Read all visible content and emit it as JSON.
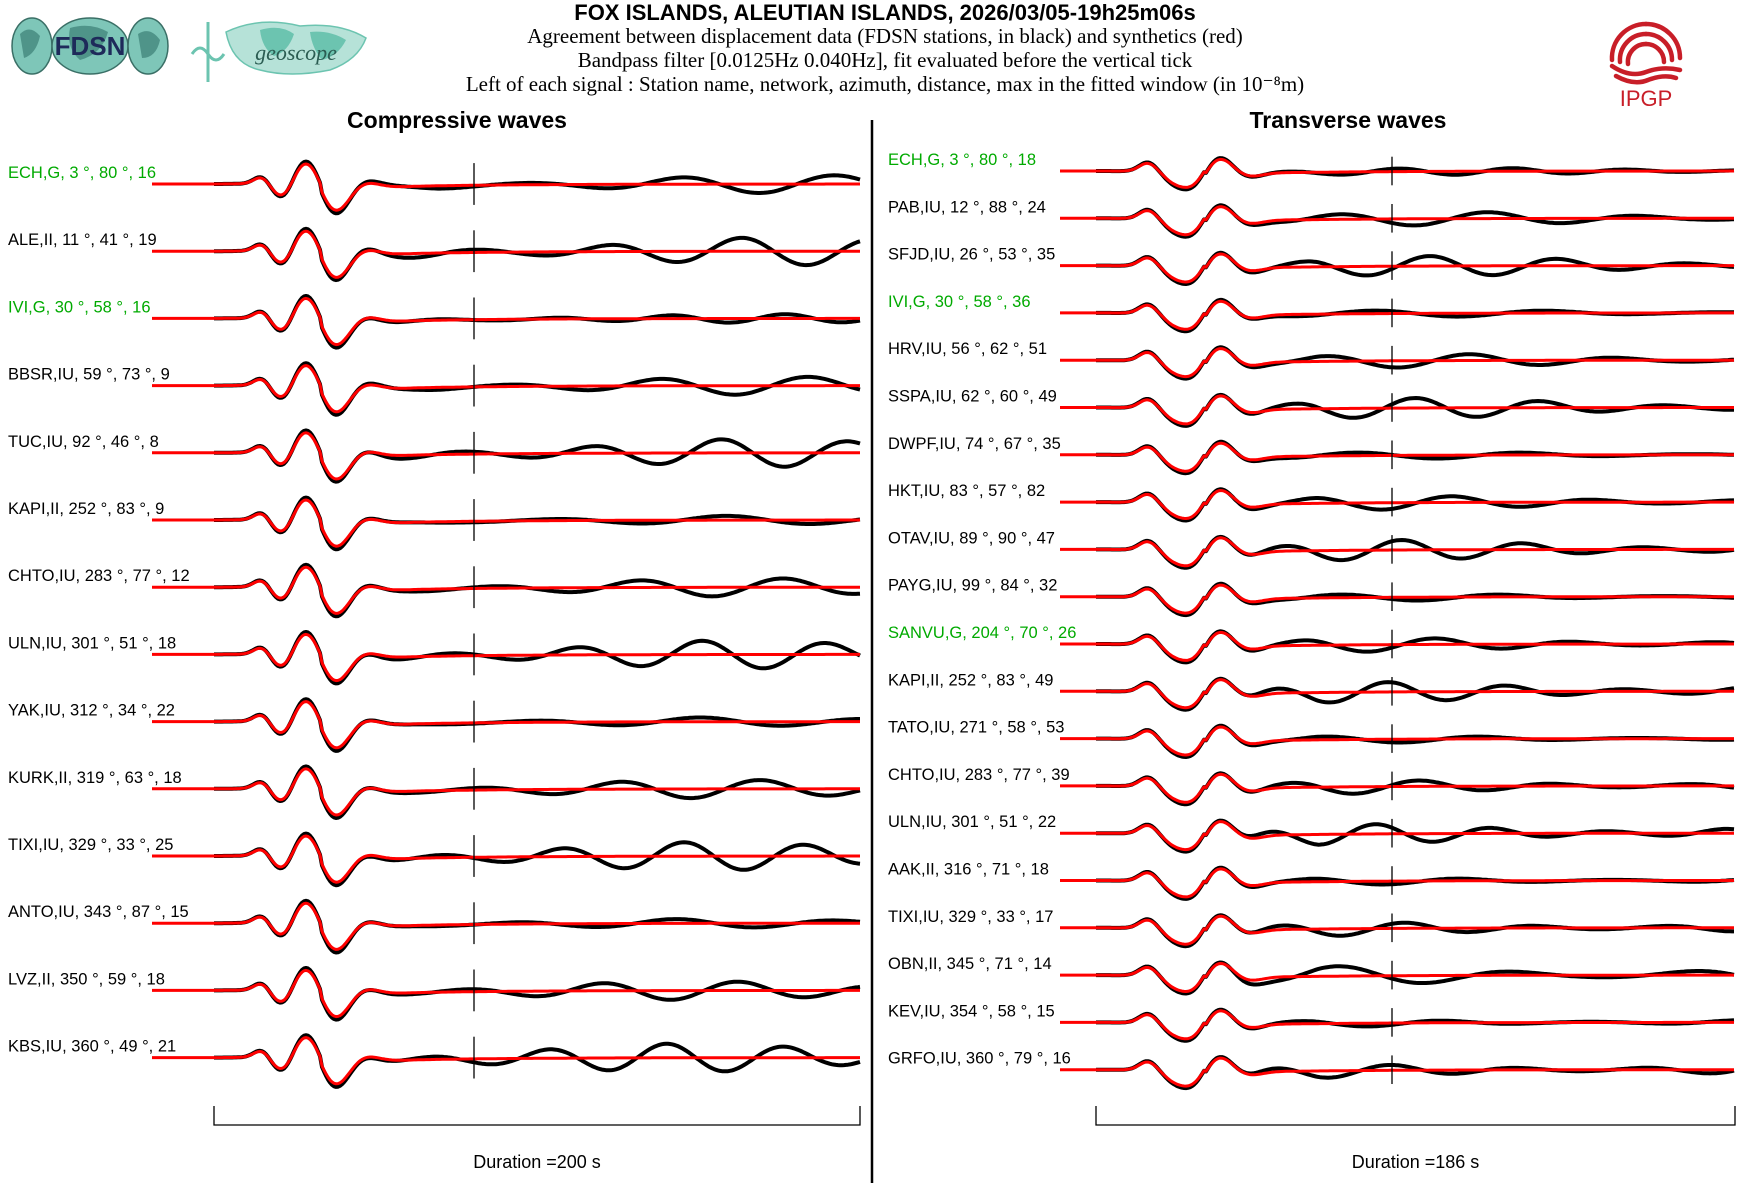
{
  "header": {
    "title": "FOX ISLANDS, ALEUTIAN ISLANDS, 2026/03/05-19h25m06s",
    "subtitle_1": "Agreement between displacement data (FDSN stations, in black) and synthetics (red)",
    "subtitle_2": "Bandpass filter [0.0125Hz 0.040Hz], fit evaluated before the vertical tick",
    "subtitle_3": "Left of each signal : Station name, network, azimuth, distance, max in the fitted window (in 10⁻⁸m)",
    "logo_fdsn_text": "FDSN",
    "logo_geoscope_text": "geoscope",
    "logo_ipgp_text": "IPGP"
  },
  "colors": {
    "data": "#000000",
    "synthetic": "#ff0000",
    "highlight_label": "#00aa00",
    "ipgp": "#c81e28",
    "fdsn_globe": "#7ec6b8",
    "geoscope": "#6cc4b0"
  },
  "chart_data": [
    {
      "type": "line",
      "title": "Compressive waves",
      "duration_label": "Duration =200 s",
      "duration_s": 200,
      "series_names": [
        "data (black)",
        "synthetics (red)"
      ],
      "stations": [
        {
          "label": "ECH,G, 3 °, 80 °, 16",
          "name": "ECH",
          "network": "G",
          "azimuth": 3,
          "distance": 80,
          "max": 16,
          "highlight": true
        },
        {
          "label": "ALE,II, 11 °, 41 °, 19",
          "name": "ALE",
          "network": "II",
          "azimuth": 11,
          "distance": 41,
          "max": 19,
          "highlight": false
        },
        {
          "label": "IVI,G, 30 °, 58 °, 16",
          "name": "IVI",
          "network": "G",
          "azimuth": 30,
          "distance": 58,
          "max": 16,
          "highlight": true
        },
        {
          "label": "BBSR,IU, 59 °, 73 °, 9",
          "name": "BBSR",
          "network": "IU",
          "azimuth": 59,
          "distance": 73,
          "max": 9,
          "highlight": false
        },
        {
          "label": "TUC,IU, 92 °, 46 °, 8",
          "name": "TUC",
          "network": "IU",
          "azimuth": 92,
          "distance": 46,
          "max": 8,
          "highlight": false
        },
        {
          "label": "KAPI,II, 252 °, 83 °, 9",
          "name": "KAPI",
          "network": "II",
          "azimuth": 252,
          "distance": 83,
          "max": 9,
          "highlight": false
        },
        {
          "label": "CHTO,IU, 283 °, 77 °, 12",
          "name": "CHTO",
          "network": "IU",
          "azimuth": 283,
          "distance": 77,
          "max": 12,
          "highlight": false
        },
        {
          "label": "ULN,IU, 301 °, 51 °, 18",
          "name": "ULN",
          "network": "IU",
          "azimuth": 301,
          "distance": 51,
          "max": 18,
          "highlight": false
        },
        {
          "label": "YAK,IU, 312 °, 34 °, 22",
          "name": "YAK",
          "network": "IU",
          "azimuth": 312,
          "distance": 34,
          "max": 22,
          "highlight": false
        },
        {
          "label": "KURK,II, 319 °, 63 °, 18",
          "name": "KURK",
          "network": "II",
          "azimuth": 319,
          "distance": 63,
          "max": 18,
          "highlight": false
        },
        {
          "label": "TIXI,IU, 329 °, 33 °, 25",
          "name": "TIXI",
          "network": "IU",
          "azimuth": 329,
          "distance": 33,
          "max": 25,
          "highlight": false
        },
        {
          "label": "ANTO,IU, 343 °, 87 °, 15",
          "name": "ANTO",
          "network": "IU",
          "azimuth": 343,
          "distance": 87,
          "max": 15,
          "highlight": false
        },
        {
          "label": "LVZ,II, 350 °, 59 °, 18",
          "name": "LVZ",
          "network": "II",
          "azimuth": 350,
          "distance": 59,
          "max": 18,
          "highlight": false
        },
        {
          "label": "KBS,IU, 360 °, 49 °, 21",
          "name": "KBS",
          "network": "IU",
          "azimuth": 360,
          "distance": 49,
          "max": 21,
          "highlight": false
        }
      ]
    },
    {
      "type": "line",
      "title": "Transverse waves",
      "duration_label": "Duration =186 s",
      "duration_s": 186,
      "series_names": [
        "data (black)",
        "synthetics (red)"
      ],
      "stations": [
        {
          "label": "ECH,G, 3 °, 80 °, 18",
          "name": "ECH",
          "network": "G",
          "azimuth": 3,
          "distance": 80,
          "max": 18,
          "highlight": true
        },
        {
          "label": "PAB,IU, 12 °, 88 °, 24",
          "name": "PAB",
          "network": "IU",
          "azimuth": 12,
          "distance": 88,
          "max": 24,
          "highlight": false
        },
        {
          "label": "SFJD,IU, 26 °, 53 °, 35",
          "name": "SFJD",
          "network": "IU",
          "azimuth": 26,
          "distance": 53,
          "max": 35,
          "highlight": false
        },
        {
          "label": "IVI,G, 30 °, 58 °, 36",
          "name": "IVI",
          "network": "G",
          "azimuth": 30,
          "distance": 58,
          "max": 36,
          "highlight": true
        },
        {
          "label": "HRV,IU, 56 °, 62 °, 51",
          "name": "HRV",
          "network": "IU",
          "azimuth": 56,
          "distance": 62,
          "max": 51,
          "highlight": false
        },
        {
          "label": "SSPA,IU, 62 °, 60 °, 49",
          "name": "SSPA",
          "network": "IU",
          "azimuth": 62,
          "distance": 60,
          "max": 49,
          "highlight": false
        },
        {
          "label": "DWPF,IU, 74 °, 67 °, 35",
          "name": "DWPF",
          "network": "IU",
          "azimuth": 74,
          "distance": 67,
          "max": 35,
          "highlight": false
        },
        {
          "label": "HKT,IU, 83 °, 57 °, 82",
          "name": "HKT",
          "network": "IU",
          "azimuth": 83,
          "distance": 57,
          "max": 82,
          "highlight": false
        },
        {
          "label": "OTAV,IU, 89 °, 90 °, 47",
          "name": "OTAV",
          "network": "IU",
          "azimuth": 89,
          "distance": 90,
          "max": 47,
          "highlight": false
        },
        {
          "label": "PAYG,IU, 99 °, 84 °, 32",
          "name": "PAYG",
          "network": "IU",
          "azimuth": 99,
          "distance": 84,
          "max": 32,
          "highlight": false
        },
        {
          "label": "SANVU,G, 204 °, 70 °, 26",
          "name": "SANVU",
          "network": "G",
          "azimuth": 204,
          "distance": 70,
          "max": 26,
          "highlight": true
        },
        {
          "label": "KAPI,II, 252 °, 83 °, 49",
          "name": "KAPI",
          "network": "II",
          "azimuth": 252,
          "distance": 83,
          "max": 49,
          "highlight": false
        },
        {
          "label": "TATO,IU, 271 °, 58 °, 53",
          "name": "TATO",
          "network": "IU",
          "azimuth": 271,
          "distance": 58,
          "max": 53,
          "highlight": false
        },
        {
          "label": "CHTO,IU, 283 °, 77 °, 39",
          "name": "CHTO",
          "network": "IU",
          "azimuth": 283,
          "distance": 77,
          "max": 39,
          "highlight": false
        },
        {
          "label": "ULN,IU, 301 °, 51 °, 22",
          "name": "ULN",
          "network": "IU",
          "azimuth": 301,
          "distance": 51,
          "max": 22,
          "highlight": false
        },
        {
          "label": "AAK,II, 316 °, 71 °, 18",
          "name": "AAK",
          "network": "II",
          "azimuth": 316,
          "distance": 71,
          "max": 18,
          "highlight": false
        },
        {
          "label": "TIXI,IU, 329 °, 33 °, 17",
          "name": "TIXI",
          "network": "IU",
          "azimuth": 329,
          "distance": 33,
          "max": 17,
          "highlight": false
        },
        {
          "label": "OBN,II, 345 °, 71 °, 14",
          "name": "OBN",
          "network": "II",
          "azimuth": 345,
          "distance": 71,
          "max": 14,
          "highlight": false
        },
        {
          "label": "KEV,IU, 354 °, 58 °, 15",
          "name": "KEV",
          "network": "IU",
          "azimuth": 354,
          "distance": 58,
          "max": 15,
          "highlight": false
        },
        {
          "label": "GRFO,IU, 360 °, 79 °, 16",
          "name": "GRFO",
          "network": "IU",
          "azimuth": 360,
          "distance": 79,
          "max": 16,
          "highlight": false
        }
      ]
    }
  ]
}
